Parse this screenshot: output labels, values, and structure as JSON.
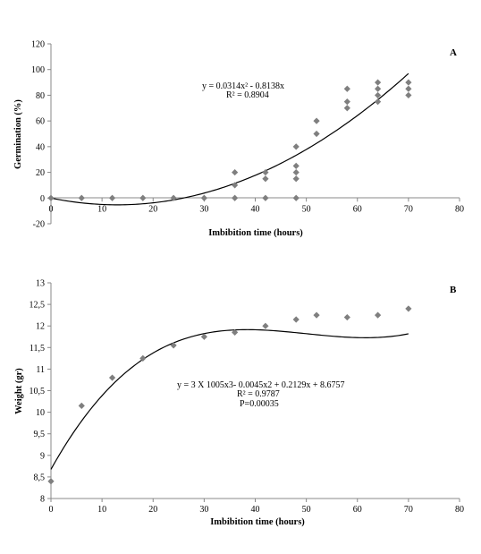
{
  "chart_data": [
    {
      "type": "scatter",
      "panel_label": "A",
      "xlabel": "Imbibition time (hours)",
      "ylabel": "Germination (%)",
      "xlim": [
        0,
        80
      ],
      "ylim": [
        -20,
        120
      ],
      "xticks": [
        "0",
        "10",
        "20",
        "30",
        "40",
        "50",
        "60",
        "70",
        "80"
      ],
      "yticks": [
        "-20",
        "0",
        "20",
        "40",
        "60",
        "80",
        "100",
        "120"
      ],
      "grid": false,
      "point_color": "#7f7f7f",
      "line_color": "#000000",
      "series": [
        {
          "points": [
            [
              0,
              0
            ],
            [
              6,
              0
            ],
            [
              12,
              0
            ],
            [
              18,
              0
            ],
            [
              24,
              0
            ],
            [
              30,
              0
            ],
            [
              36,
              0
            ],
            [
              36,
              10
            ],
            [
              36,
              20
            ],
            [
              42,
              0
            ],
            [
              42,
              15
            ],
            [
              42,
              20
            ],
            [
              48,
              0
            ],
            [
              48,
              15
            ],
            [
              48,
              20
            ],
            [
              48,
              25
            ],
            [
              48,
              40
            ],
            [
              52,
              50
            ],
            [
              52,
              60
            ],
            [
              58,
              70
            ],
            [
              58,
              75
            ],
            [
              58,
              85
            ],
            [
              64,
              75
            ],
            [
              64,
              80
            ],
            [
              64,
              85
            ],
            [
              64,
              90
            ],
            [
              70,
              80
            ],
            [
              70,
              85
            ],
            [
              70,
              90
            ]
          ]
        }
      ],
      "trendline": {
        "type": "polynomial-2",
        "coefficients": [
          0.0314,
          -0.8138,
          0
        ],
        "x_range": [
          0,
          70
        ]
      },
      "equation": "y = 0.0314x² - 0.8138x",
      "r2": "R² = 0.8904"
    },
    {
      "type": "scatter",
      "panel_label": "B",
      "xlabel": "Imbibition time (hours)",
      "ylabel": "Weight (gr)",
      "xlim": [
        0,
        80
      ],
      "ylim": [
        8,
        13
      ],
      "xticks": [
        "0",
        "10",
        "20",
        "30",
        "40",
        "50",
        "60",
        "70",
        "80"
      ],
      "yticks": [
        "8",
        "8,5",
        "9",
        "9,5",
        "10",
        "10,5",
        "11",
        "11,5",
        "12",
        "12,5",
        "13"
      ],
      "grid": false,
      "point_color": "#7f7f7f",
      "line_color": "#000000",
      "series": [
        {
          "points": [
            [
              0,
              8.4
            ],
            [
              6,
              10.15
            ],
            [
              12,
              10.8
            ],
            [
              18,
              11.25
            ],
            [
              24,
              11.55
            ],
            [
              30,
              11.75
            ],
            [
              36,
              11.85
            ],
            [
              42,
              12.0
            ],
            [
              48,
              12.15
            ],
            [
              52,
              12.25
            ],
            [
              58,
              12.2
            ],
            [
              64,
              12.25
            ],
            [
              70,
              12.4
            ]
          ]
        }
      ],
      "trendline": {
        "type": "polynomial-3",
        "coefficients": [
          3e-05,
          -0.0045,
          0.2129,
          8.6757
        ],
        "x_range": [
          0,
          70
        ]
      },
      "equation": "y = 3 X 1005x3- 0.0045x2 + 0.2129x + 8.6757",
      "r2": "R² = 0.9787",
      "p_value": "P=0.00035"
    }
  ]
}
